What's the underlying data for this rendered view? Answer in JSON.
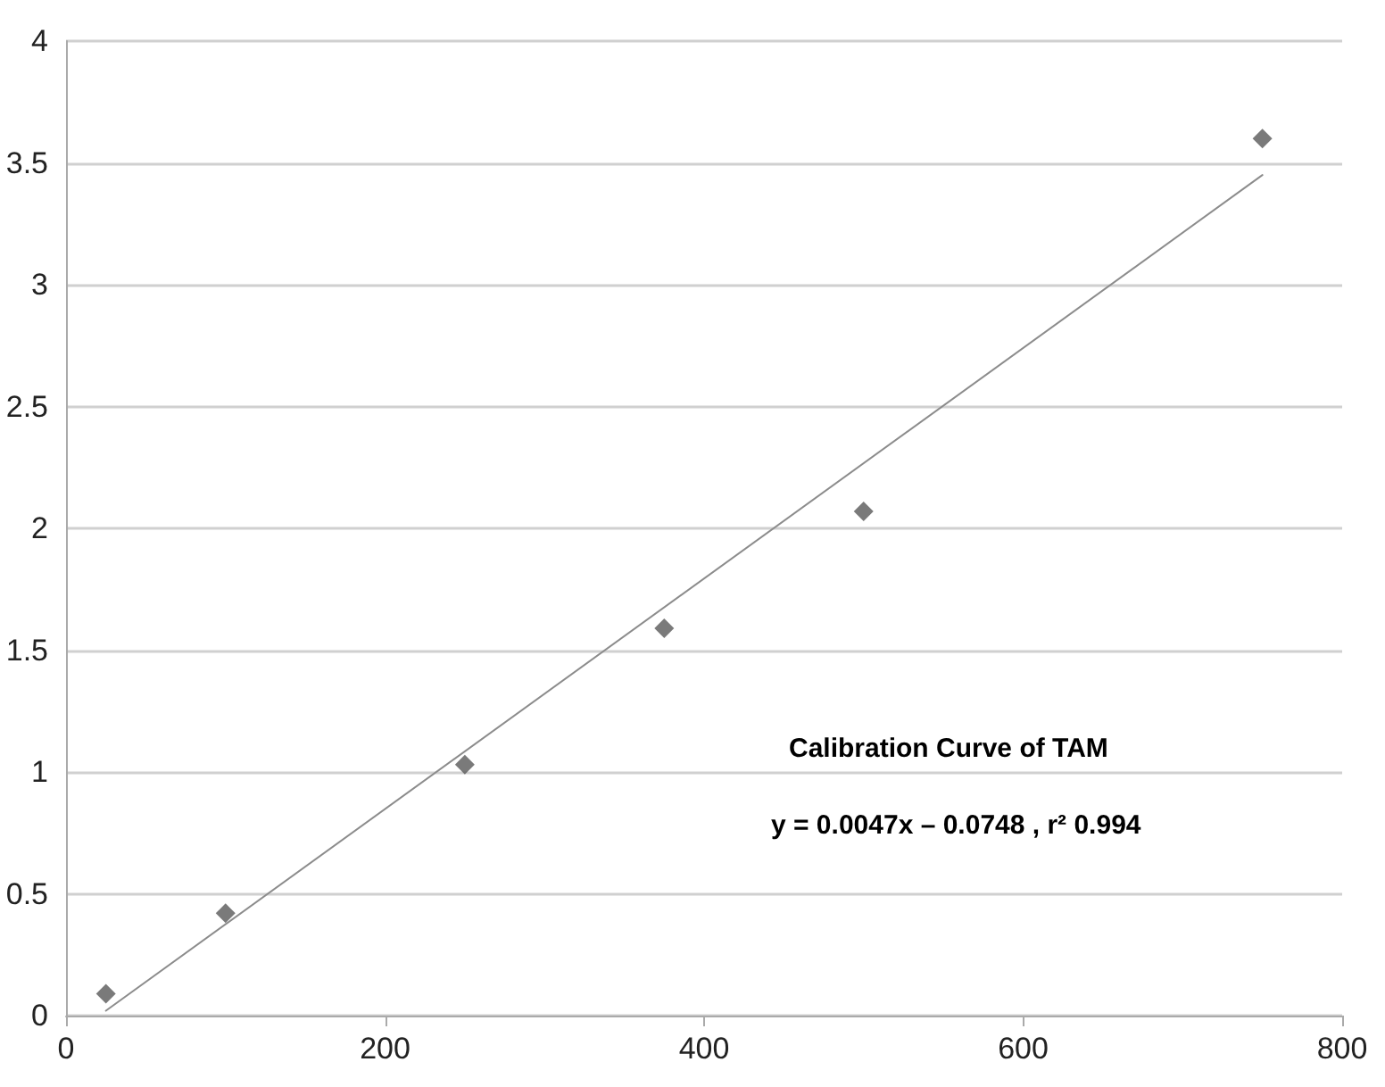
{
  "chart_data": {
    "type": "scatter",
    "title": "Calibration Curve of TAM",
    "annotations": [
      "y = 0.0047x – 0.0748 , r² 0.994"
    ],
    "series": [
      {
        "color": "#595959",
        "marker": "diamond",
        "x": [
          25,
          100,
          250,
          375,
          500,
          750
        ],
        "values": [
          0.09,
          0.42,
          1.03,
          1.59,
          2.07,
          3.6
        ]
      },
      {
        "type": "line",
        "color": "#8c8c8c",
        "marker": "none",
        "line_style": "solid",
        "x": [
          25,
          750
        ],
        "values": [
          0.02,
          3.45
        ]
      }
    ],
    "xlim": [
      0,
      800
    ],
    "xticks": [
      0,
      200,
      400,
      600,
      800
    ],
    "ylim": [
      0,
      4
    ],
    "yticks": [
      0,
      0.5,
      1,
      1.5,
      2,
      2.5,
      3,
      3.5,
      4
    ],
    "grid": "y"
  }
}
